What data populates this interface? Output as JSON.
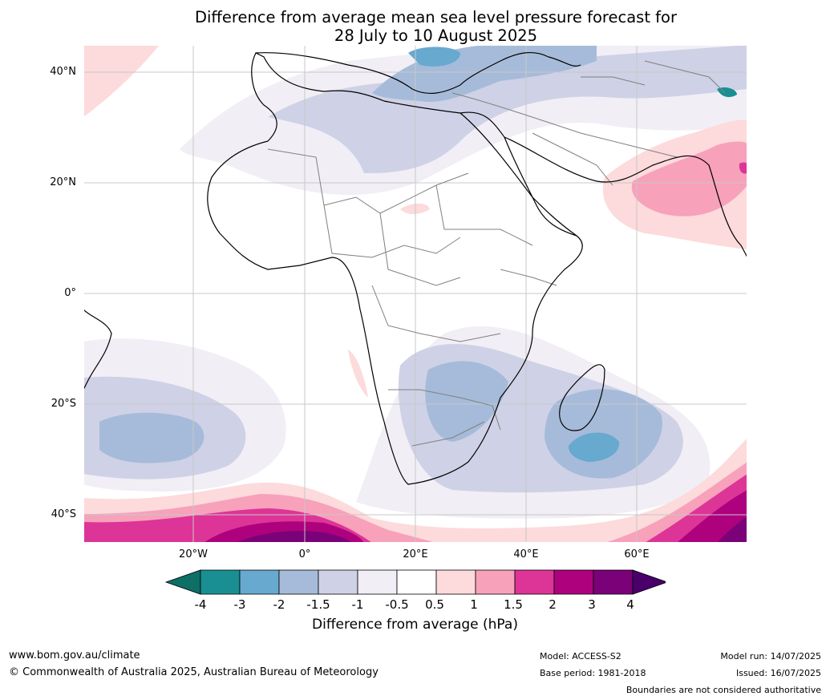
{
  "title_line1": "Difference from average mean sea level pressure forecast for",
  "title_line2": "28 July to 10 August 2025",
  "lat_labels": [
    "40°N",
    "20°N",
    "0°",
    "20°S",
    "40°S"
  ],
  "lon_labels": [
    "20°W",
    "0°",
    "20°E",
    "40°E",
    "60°E"
  ],
  "colorbar": {
    "ticks": [
      "-4",
      "-3",
      "-2",
      "-1.5",
      "-1",
      "-0.5",
      "0.5",
      "1",
      "1.5",
      "2",
      "3",
      "4"
    ],
    "colors": [
      "#0d6f66",
      "#1a8f93",
      "#67a9cf",
      "#a6bbd9",
      "#cfd1e6",
      "#f1eef5",
      "#ffffff",
      "#fddadb",
      "#f7a1bb",
      "#dd3497",
      "#ae017e",
      "#7a0177",
      "#49006a"
    ],
    "title": "Difference from average (hPa)"
  },
  "footer": {
    "website": "www.bom.gov.au/climate",
    "copyright": "© Commonwealth of Australia 2025, Australian Bureau of Meteorology",
    "model": "Model: ACCESS-S2",
    "base_period": "Base period: 1981-2018",
    "model_run": "Model run: 14/07/2025",
    "issued": "Issued: 16/07/2025",
    "boundaries": "Boundaries are not considered authoritative"
  }
}
